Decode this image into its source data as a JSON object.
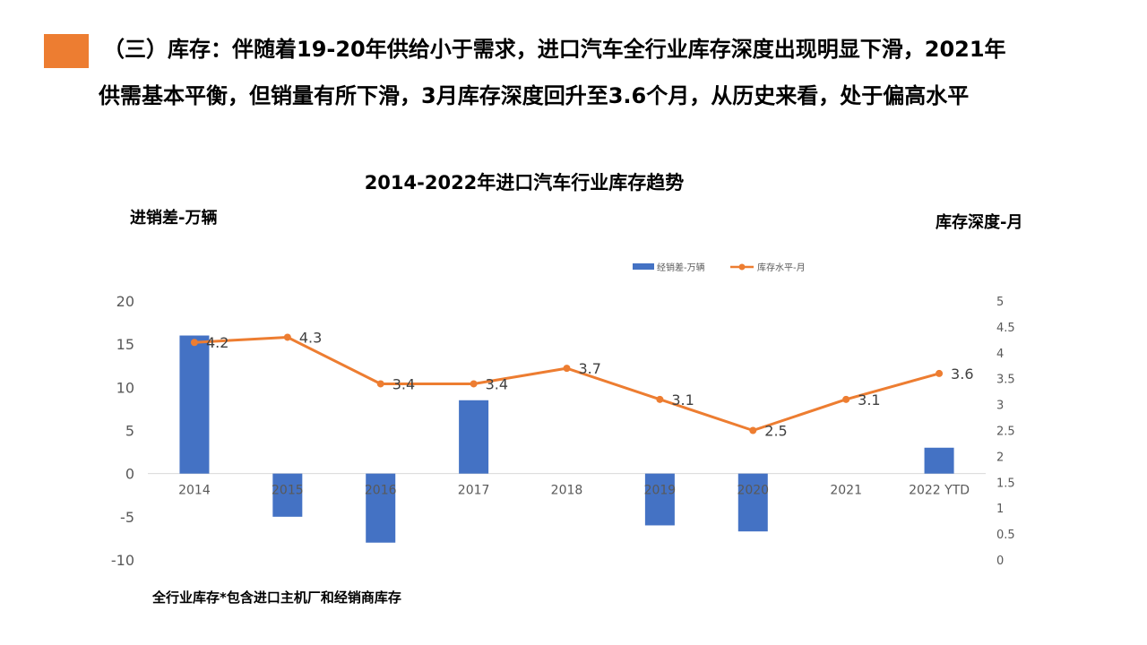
{
  "header": {
    "line1": "（三）库存：伴随着19-20年供给小于需求，进口汽车全行业库存深度出现明显下滑，2021年",
    "line2": "供需基本平衡，但销量有所下滑，3月库存深度回升至3.6个月，从历史来看，处于偏高水平"
  },
  "footnote": "全行业库存*包含进口主机厂和经销商库存",
  "colors": {
    "accent": "#ED7D31",
    "bar": "#4472C4",
    "line": "#ED7D31",
    "axis": "#D9D9D9",
    "tick": "#595959"
  },
  "chart_data": {
    "type": "bar+line",
    "title": "2014-2022年进口汽车行业库存趋势",
    "ylabel_left": "进销差-万辆",
    "ylabel_right": "库存深度-月",
    "categories": [
      "2014",
      "2015",
      "2016",
      "2017",
      "2018",
      "2019",
      "2020",
      "2021",
      "2022 YTD"
    ],
    "series": [
      {
        "name": "经销差-万辆",
        "type": "bar",
        "axis": "left",
        "values": [
          16,
          -5,
          -8,
          8.5,
          0,
          -6,
          -6.7,
          0,
          3
        ]
      },
      {
        "name": "库存水平-月",
        "type": "line",
        "axis": "right",
        "values": [
          4.2,
          4.3,
          3.4,
          3.4,
          3.7,
          3.1,
          2.5,
          3.1,
          3.6
        ],
        "labels": [
          "4.2",
          "4.3",
          "3.4",
          "3.4",
          "3.7",
          "3.1",
          "2.5",
          "3.1",
          "3.6"
        ]
      }
    ],
    "ylim_left": [
      -10,
      20
    ],
    "yticks_left": [
      "20",
      "15",
      "10",
      "5",
      "0",
      "-5",
      "-10"
    ],
    "ylim_right": [
      0,
      5
    ],
    "yticks_right": [
      "5",
      "4.5",
      "4",
      "3.5",
      "3",
      "2.5",
      "2",
      "1.5",
      "1",
      "0.5",
      "0"
    ],
    "legend_position": "top-right",
    "grid": false
  }
}
